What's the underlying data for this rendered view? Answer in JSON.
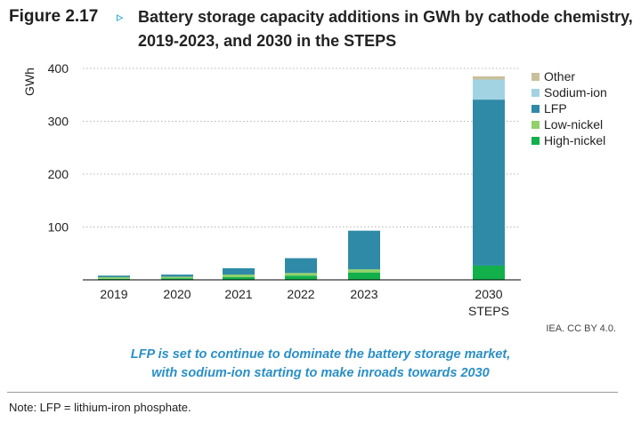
{
  "figure": {
    "number": "Figure 2.17",
    "arrow": "▹",
    "title": "Battery storage capacity additions in GWh by cathode chemistry, 2019-2023, and 2030 in the STEPS"
  },
  "chart_data": {
    "type": "bar",
    "stacked": true,
    "title": "Battery storage capacity additions in GWh by cathode chemistry, 2019-2023, and 2030 in the STEPS",
    "ylabel": "GWh",
    "ylim": [
      0,
      400
    ],
    "yticks": [
      100,
      200,
      300,
      400
    ],
    "categories": [
      {
        "label": "2019",
        "sublabel": ""
      },
      {
        "label": "2020",
        "sublabel": ""
      },
      {
        "label": "2021",
        "sublabel": ""
      },
      {
        "label": "2022",
        "sublabel": ""
      },
      {
        "label": "2023",
        "sublabel": ""
      },
      {
        "label": "2030",
        "sublabel": "STEPS"
      }
    ],
    "series": [
      {
        "name": "High-nickel",
        "color": "#12b04b",
        "values": [
          2,
          3,
          5,
          8,
          14,
          27
        ]
      },
      {
        "name": "Low-nickel",
        "color": "#8fd16a",
        "values": [
          3,
          3,
          5,
          5,
          6,
          0
        ]
      },
      {
        "name": "LFP",
        "color": "#2f8aa8",
        "values": [
          3,
          4,
          12,
          28,
          73,
          314
        ]
      },
      {
        "name": "Sodium-ion",
        "color": "#a2d3e3",
        "values": [
          0,
          0,
          0,
          0,
          0,
          38
        ]
      },
      {
        "name": "Other",
        "color": "#c9c09b",
        "values": [
          0,
          0,
          0,
          0,
          0,
          6
        ]
      }
    ],
    "legend_position": "top-right"
  },
  "source": "IEA. CC BY 4.0.",
  "takeaway": {
    "line1": "LFP is set to continue to dominate the battery storage market,",
    "line2": "with sodium-ion starting to make inroads towards 2030"
  },
  "note": "Note: LFP = lithium-iron phosphate."
}
